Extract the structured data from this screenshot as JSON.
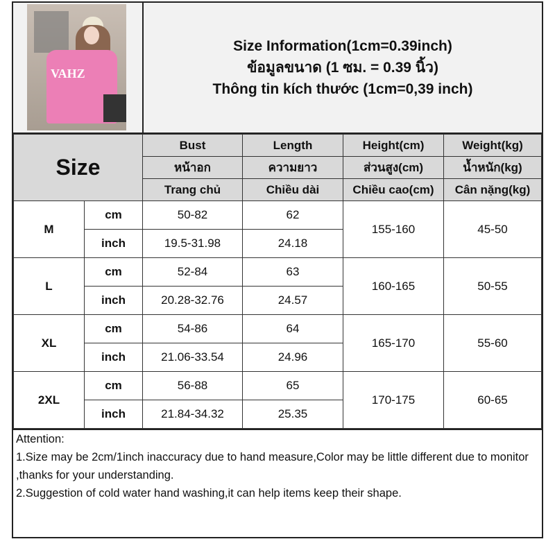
{
  "title": {
    "line1": "Size Information(1cm=0.39inch)",
    "line2": "ข้อมูลขนาด (1 ซม. = 0.39 นิ้ว)",
    "line3": "Thông tin kích thước (1cm=0,39 inch)"
  },
  "photo": {
    "shirt_text": "VAHZ"
  },
  "header": {
    "size": "Size",
    "columns": [
      {
        "en": "Bust",
        "th": "หน้าอก",
        "vi": "Trang chủ"
      },
      {
        "en": "Length",
        "th": "ความยาว",
        "vi": "Chiều dài"
      },
      {
        "en": "Height(cm)",
        "th": "ส่วนสูง(cm)",
        "vi": "Chiều cao(cm)"
      },
      {
        "en": "Weight(kg)",
        "th": "น้ำหนัก(kg)",
        "vi": "Cân nặng(kg)"
      }
    ]
  },
  "units": {
    "cm": "cm",
    "inch": "inch"
  },
  "rows": [
    {
      "size": "M",
      "cm": {
        "bust": "50-82",
        "length": "62"
      },
      "inch": {
        "bust": "19.5-31.98",
        "length": "24.18"
      },
      "height": "155-160",
      "weight": "45-50"
    },
    {
      "size": "L",
      "cm": {
        "bust": "52-84",
        "length": "63"
      },
      "inch": {
        "bust": "20.28-32.76",
        "length": "24.57"
      },
      "height": "160-165",
      "weight": "50-55"
    },
    {
      "size": "XL",
      "cm": {
        "bust": "54-86",
        "length": "64"
      },
      "inch": {
        "bust": "21.06-33.54",
        "length": "24.96"
      },
      "height": "165-170",
      "weight": "55-60"
    },
    {
      "size": "2XL",
      "cm": {
        "bust": "56-88",
        "length": "65"
      },
      "inch": {
        "bust": "21.84-34.32",
        "length": "25.35"
      },
      "height": "170-175",
      "weight": "60-65"
    }
  ],
  "attention": {
    "heading": "Attention:",
    "note1": "1.Size may be 2cm/1inch inaccuracy due to hand measure,Color may be little different due to monitor ,thanks for your understanding.",
    "note2": "2.Suggestion of cold water hand washing,it can help items keep their shape."
  }
}
